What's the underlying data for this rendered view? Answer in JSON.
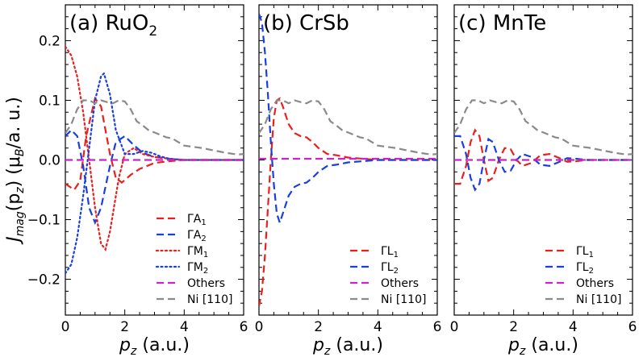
{
  "figure": {
    "ylabel_main": "J",
    "ylabel_sub": "mag",
    "ylabel_open": "(p",
    "ylabel_z": "z",
    "ylabel_mid": ") (μ",
    "ylabel_b": "B",
    "ylabel_end": "/a. u.)",
    "xlabel_p": "p",
    "xlabel_sub": "z",
    "xlabel_rest": " (a.u.)"
  },
  "colors": {
    "red": "#e8201e",
    "blue": "#1a3fdc",
    "magenta": "#cc22cc",
    "gray": "#8a8a8a"
  },
  "chart_data": [
    {
      "type": "line",
      "panel_label": "(a) RuO",
      "panel_sub": "2",
      "xlim": [
        0,
        6
      ],
      "ylim": [
        -0.26,
        0.26
      ],
      "xticks": [
        "0",
        "2",
        "4",
        "6"
      ],
      "xtick_values": [
        0,
        2,
        4,
        6
      ],
      "yticks": [
        "−0.2",
        "−0.1",
        "0.0",
        "0.1",
        "0.2"
      ],
      "ytick_values": [
        -0.2,
        -0.1,
        0.0,
        0.1,
        0.2
      ],
      "legend_position": "lower-right",
      "series": [
        {
          "name": "ΓA",
          "name_sub": "1",
          "color": "#e8201e",
          "dash": "dashed",
          "x": [
            0,
            0.3,
            0.5,
            0.7,
            1.0,
            1.2,
            1.5,
            1.7,
            1.9,
            2.2,
            2.5,
            3.0,
            3.5,
            4.0,
            5.0,
            6.0
          ],
          "y": [
            -0.04,
            -0.05,
            -0.035,
            0.04,
            0.103,
            0.09,
            0.01,
            -0.03,
            -0.038,
            -0.025,
            -0.015,
            -0.005,
            -0.002,
            0.0,
            0.0,
            0.0
          ]
        },
        {
          "name": "ΓA",
          "name_sub": "2",
          "color": "#1a3fdc",
          "dash": "dashed",
          "x": [
            0,
            0.2,
            0.4,
            0.6,
            0.8,
            1.0,
            1.2,
            1.5,
            1.7,
            2.0,
            2.3,
            2.6,
            3.0,
            3.5,
            4.0,
            5.0,
            6.0
          ],
          "y": [
            0.04,
            0.05,
            0.04,
            -0.01,
            -0.08,
            -0.105,
            -0.08,
            -0.01,
            0.03,
            0.04,
            0.025,
            0.012,
            0.005,
            0.002,
            0.0,
            0.0,
            0.0
          ]
        },
        {
          "name": "ΓM",
          "name_sub": "1",
          "color": "#e8201e",
          "dash": "dotted",
          "x": [
            0,
            0.2,
            0.4,
            0.6,
            0.8,
            1.0,
            1.2,
            1.35,
            1.5,
            1.8,
            2.0,
            2.3,
            2.6,
            3.0,
            3.5,
            4.0,
            5.0,
            6.0
          ],
          "y": [
            0.19,
            0.175,
            0.14,
            0.08,
            0.0,
            -0.08,
            -0.14,
            -0.15,
            -0.12,
            -0.03,
            0.01,
            0.02,
            0.01,
            0.005,
            0.002,
            0.0,
            0.0,
            0.0
          ]
        },
        {
          "name": "ΓM",
          "name_sub": "2",
          "color": "#1a3fdc",
          "dash": "dotted",
          "x": [
            0,
            0.2,
            0.4,
            0.6,
            0.8,
            1.0,
            1.2,
            1.3,
            1.5,
            1.7,
            2.0,
            2.3,
            2.6,
            2.9,
            3.2,
            3.5,
            4.0,
            5.0,
            6.0
          ],
          "y": [
            -0.19,
            -0.175,
            -0.13,
            -0.06,
            0.02,
            0.1,
            0.14,
            0.145,
            0.11,
            0.05,
            0.01,
            0.01,
            0.015,
            0.012,
            0.006,
            0.002,
            0.0,
            0.0,
            0.0
          ]
        },
        {
          "name": "Others",
          "name_sub": "",
          "color": "#cc22cc",
          "dash": "dashed",
          "x": [
            0,
            6
          ],
          "y": [
            0.0,
            0.0
          ]
        },
        {
          "name": "Ni [110]",
          "name_sub": "",
          "color": "#8a8a8a",
          "dash": "dashed",
          "x": [
            0,
            0.2,
            0.4,
            0.6,
            0.8,
            1.0,
            1.2,
            1.4,
            1.6,
            1.8,
            2.0,
            2.2,
            2.4,
            2.6,
            2.8,
            3.0,
            3.2,
            3.4,
            3.6,
            3.8,
            4.0,
            4.3,
            4.6,
            5.0,
            5.4,
            5.8,
            6.0
          ],
          "y": [
            0.045,
            0.06,
            0.085,
            0.1,
            0.1,
            0.095,
            0.1,
            0.097,
            0.095,
            0.1,
            0.098,
            0.085,
            0.065,
            0.058,
            0.05,
            0.046,
            0.042,
            0.038,
            0.036,
            0.03,
            0.024,
            0.022,
            0.02,
            0.016,
            0.012,
            0.009,
            0.01
          ]
        }
      ]
    },
    {
      "type": "line",
      "panel_label": "(b) CrSb",
      "panel_sub": "",
      "xlim": [
        0,
        6
      ],
      "ylim": [
        -0.26,
        0.26
      ],
      "xticks": [
        "0",
        "2",
        "4",
        "6"
      ],
      "xtick_values": [
        0,
        2,
        4,
        6
      ],
      "yticks": [],
      "ytick_values": [
        -0.2,
        -0.1,
        0.0,
        0.1,
        0.2
      ],
      "legend_position": "lower-right",
      "series": [
        {
          "name": "ΓL",
          "name_sub": "1",
          "color": "#e8201e",
          "dash": "dashed",
          "x": [
            0,
            0.1,
            0.2,
            0.3,
            0.4,
            0.5,
            0.6,
            0.7,
            0.8,
            1.0,
            1.2,
            1.4,
            1.6,
            1.8,
            2.0,
            2.3,
            2.6,
            3.0,
            3.5,
            4.0,
            5.0,
            6.0
          ],
          "y": [
            -0.245,
            -0.22,
            -0.16,
            -0.08,
            0.0,
            0.07,
            0.1,
            0.103,
            0.09,
            0.06,
            0.045,
            0.04,
            0.038,
            0.03,
            0.02,
            0.01,
            0.008,
            0.004,
            0.002,
            0.0,
            0.0,
            0.0
          ]
        },
        {
          "name": "ΓL",
          "name_sub": "2",
          "color": "#1a3fdc",
          "dash": "dashed",
          "x": [
            0,
            0.1,
            0.2,
            0.3,
            0.4,
            0.5,
            0.6,
            0.7,
            0.8,
            1.0,
            1.2,
            1.4,
            1.6,
            1.8,
            2.0,
            2.3,
            2.6,
            3.0,
            3.5,
            4.0,
            5.0,
            6.0
          ],
          "y": [
            0.245,
            0.23,
            0.18,
            0.11,
            0.03,
            -0.04,
            -0.09,
            -0.105,
            -0.09,
            -0.06,
            -0.045,
            -0.04,
            -0.038,
            -0.03,
            -0.02,
            -0.01,
            -0.008,
            -0.004,
            -0.002,
            0.0,
            0.0,
            0.0
          ]
        },
        {
          "name": "Others",
          "name_sub": "",
          "color": "#cc22cc",
          "dash": "dashed",
          "x": [
            0,
            6
          ],
          "y": [
            0.002,
            0.002
          ]
        },
        {
          "name": "Ni [110]",
          "name_sub": "",
          "color": "#8a8a8a",
          "dash": "dashed",
          "x": [
            0,
            0.2,
            0.4,
            0.6,
            0.8,
            1.0,
            1.2,
            1.4,
            1.6,
            1.8,
            2.0,
            2.2,
            2.4,
            2.6,
            2.8,
            3.0,
            3.2,
            3.4,
            3.6,
            3.8,
            4.0,
            4.3,
            4.6,
            5.0,
            5.4,
            5.8,
            6.0
          ],
          "y": [
            0.045,
            0.06,
            0.085,
            0.1,
            0.1,
            0.095,
            0.1,
            0.097,
            0.095,
            0.1,
            0.098,
            0.085,
            0.065,
            0.058,
            0.05,
            0.046,
            0.042,
            0.038,
            0.036,
            0.03,
            0.024,
            0.022,
            0.02,
            0.016,
            0.012,
            0.009,
            0.01
          ]
        }
      ]
    },
    {
      "type": "line",
      "panel_label": "(c) MnTe",
      "panel_sub": "",
      "xlim": [
        0,
        6
      ],
      "ylim": [
        -0.26,
        0.26
      ],
      "xticks": [
        "0",
        "2",
        "4",
        "6"
      ],
      "xtick_values": [
        0,
        2,
        4,
        6
      ],
      "yticks": [],
      "ytick_values": [
        -0.2,
        -0.1,
        0.0,
        0.1,
        0.2
      ],
      "legend_position": "lower-right",
      "series": [
        {
          "name": "ΓL",
          "name_sub": "1",
          "color": "#e8201e",
          "dash": "dashed",
          "x": [
            0,
            0.2,
            0.4,
            0.55,
            0.7,
            0.85,
            1.0,
            1.15,
            1.3,
            1.5,
            1.7,
            1.9,
            2.1,
            2.3,
            2.6,
            2.9,
            3.2,
            3.5,
            3.8,
            4.1,
            4.5,
            5.0,
            6.0
          ],
          "y": [
            -0.04,
            -0.04,
            -0.01,
            0.03,
            0.05,
            0.04,
            0.0,
            -0.035,
            -0.03,
            0.0,
            0.02,
            0.018,
            0.0,
            -0.01,
            -0.005,
            0.008,
            0.01,
            0.004,
            -0.003,
            -0.002,
            0.0,
            0.0,
            0.0
          ]
        },
        {
          "name": "ΓL",
          "name_sub": "2",
          "color": "#1a3fdc",
          "dash": "dashed",
          "x": [
            0,
            0.2,
            0.4,
            0.55,
            0.7,
            0.85,
            1.0,
            1.15,
            1.3,
            1.5,
            1.7,
            1.9,
            2.1,
            2.3,
            2.6,
            2.9,
            3.2,
            3.5,
            3.8,
            4.1,
            4.5,
            5.0,
            6.0
          ],
          "y": [
            0.04,
            0.04,
            0.01,
            -0.03,
            -0.05,
            -0.04,
            0.0,
            0.035,
            0.03,
            0.0,
            -0.02,
            -0.018,
            0.0,
            0.01,
            0.005,
            -0.008,
            -0.01,
            -0.004,
            0.003,
            0.002,
            0.0,
            0.0,
            0.0
          ]
        },
        {
          "name": "Others",
          "name_sub": "",
          "color": "#cc22cc",
          "dash": "dashed",
          "x": [
            0,
            6
          ],
          "y": [
            0.0,
            0.0
          ]
        },
        {
          "name": "Ni [110]",
          "name_sub": "",
          "color": "#8a8a8a",
          "dash": "dashed",
          "x": [
            0,
            0.2,
            0.4,
            0.6,
            0.8,
            1.0,
            1.2,
            1.4,
            1.6,
            1.8,
            2.0,
            2.2,
            2.4,
            2.6,
            2.8,
            3.0,
            3.2,
            3.4,
            3.6,
            3.8,
            4.0,
            4.3,
            4.6,
            5.0,
            5.4,
            5.8,
            6.0
          ],
          "y": [
            0.045,
            0.06,
            0.085,
            0.1,
            0.1,
            0.095,
            0.1,
            0.097,
            0.095,
            0.1,
            0.098,
            0.085,
            0.065,
            0.058,
            0.05,
            0.046,
            0.042,
            0.038,
            0.036,
            0.03,
            0.024,
            0.022,
            0.02,
            0.016,
            0.012,
            0.009,
            0.01
          ]
        }
      ]
    }
  ]
}
